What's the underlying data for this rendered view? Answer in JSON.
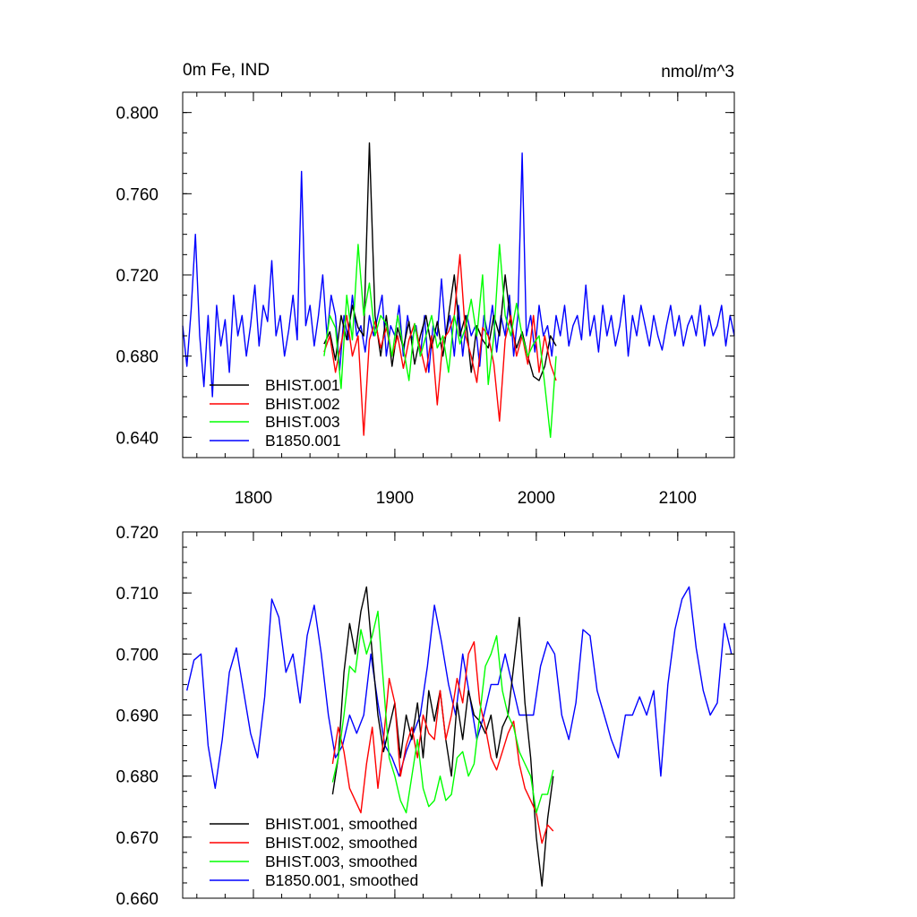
{
  "chart_data": [
    {
      "type": "line",
      "title_left": "0m Fe, IND",
      "title_right": "nmol/m^3",
      "xlim": [
        1750,
        2140
      ],
      "ylim": [
        0.63,
        0.81
      ],
      "yticks": [
        {
          "v": 0.8,
          "label": "0.800"
        },
        {
          "v": 0.76,
          "label": "0.760"
        },
        {
          "v": 0.72,
          "label": "0.720"
        },
        {
          "v": 0.68,
          "label": "0.680"
        },
        {
          "v": 0.64,
          "label": "0.640"
        }
      ],
      "xticks": [
        {
          "v": 1800,
          "label": "1800"
        },
        {
          "v": 1900,
          "label": "1900"
        },
        {
          "v": 2000,
          "label": "2000"
        },
        {
          "v": 2100,
          "label": "2100"
        }
      ],
      "legend": [
        "BHIST.001",
        "BHIST.002",
        "BHIST.003",
        "B1850.001"
      ],
      "series": [
        {
          "name": "B1850.001",
          "color": "#0000ff",
          "x": [
            1750,
            1753,
            1756,
            1759,
            1762,
            1765,
            1768,
            1771,
            1774,
            1777,
            1780,
            1783,
            1786,
            1789,
            1792,
            1795,
            1798,
            1801,
            1804,
            1807,
            1810,
            1813,
            1816,
            1819,
            1822,
            1825,
            1828,
            1831,
            1834,
            1837,
            1840,
            1843,
            1846,
            1849,
            1852,
            1855,
            1858,
            1861,
            1864,
            1867,
            1870,
            1873,
            1876,
            1879,
            1882,
            1885,
            1888,
            1891,
            1894,
            1897,
            1900,
            1903,
            1906,
            1909,
            1912,
            1915,
            1918,
            1921,
            1924,
            1927,
            1930,
            1933,
            1936,
            1939,
            1942,
            1945,
            1948,
            1951,
            1954,
            1957,
            1960,
            1963,
            1966,
            1969,
            1972,
            1975,
            1978,
            1981,
            1984,
            1987,
            1990,
            1993,
            1996,
            1999,
            2002,
            2005,
            2008,
            2011,
            2014,
            2017,
            2020,
            2023,
            2026,
            2029,
            2032,
            2035,
            2038,
            2041,
            2044,
            2047,
            2050,
            2053,
            2056,
            2059,
            2062,
            2065,
            2068,
            2071,
            2074,
            2077,
            2080,
            2083,
            2086,
            2089,
            2092,
            2095,
            2098,
            2101,
            2104,
            2107,
            2110,
            2113,
            2116,
            2119,
            2122,
            2125,
            2128,
            2131,
            2134,
            2137,
            2140
          ],
          "y": [
            0.695,
            0.675,
            0.703,
            0.74,
            0.69,
            0.665,
            0.7,
            0.66,
            0.705,
            0.685,
            0.698,
            0.672,
            0.71,
            0.69,
            0.7,
            0.68,
            0.695,
            0.715,
            0.685,
            0.705,
            0.697,
            0.727,
            0.69,
            0.7,
            0.68,
            0.693,
            0.71,
            0.688,
            0.771,
            0.695,
            0.705,
            0.685,
            0.7,
            0.72,
            0.69,
            0.71,
            0.7,
            0.673,
            0.7,
            0.688,
            0.71,
            0.69,
            0.695,
            0.682,
            0.7,
            0.69,
            0.7,
            0.71,
            0.68,
            0.695,
            0.69,
            0.705,
            0.68,
            0.7,
            0.688,
            0.695,
            0.68,
            0.7,
            0.672,
            0.695,
            0.69,
            0.718,
            0.69,
            0.7,
            0.68,
            0.705,
            0.68,
            0.7,
            0.69,
            0.695,
            0.675,
            0.7,
            0.69,
            0.705,
            0.682,
            0.7,
            0.69,
            0.71,
            0.68,
            0.7,
            0.78,
            0.69,
            0.7,
            0.682,
            0.705,
            0.69,
            0.695,
            0.68,
            0.7,
            0.69,
            0.705,
            0.685,
            0.695,
            0.7,
            0.688,
            0.715,
            0.69,
            0.7,
            0.682,
            0.705,
            0.69,
            0.7,
            0.685,
            0.695,
            0.71,
            0.68,
            0.7,
            0.69,
            0.705,
            0.695,
            0.685,
            0.7,
            0.69,
            0.683,
            0.695,
            0.705,
            0.69,
            0.7,
            0.685,
            0.695,
            0.7,
            0.69,
            0.705,
            0.685,
            0.7,
            0.69,
            0.695,
            0.705,
            0.685,
            0.7,
            0.69
          ]
        },
        {
          "name": "BHIST.001",
          "color": "#000000",
          "x": [
            1850,
            1854,
            1858,
            1862,
            1866,
            1870,
            1874,
            1878,
            1882,
            1886,
            1890,
            1894,
            1898,
            1902,
            1906,
            1910,
            1914,
            1918,
            1922,
            1926,
            1930,
            1934,
            1938,
            1942,
            1946,
            1950,
            1954,
            1958,
            1962,
            1966,
            1970,
            1974,
            1978,
            1982,
            1986,
            1990,
            1994,
            1998,
            2002,
            2006,
            2010,
            2014
          ],
          "y": [
            0.686,
            0.692,
            0.678,
            0.7,
            0.688,
            0.705,
            0.694,
            0.69,
            0.785,
            0.7,
            0.68,
            0.7,
            0.675,
            0.694,
            0.684,
            0.697,
            0.676,
            0.69,
            0.7,
            0.684,
            0.697,
            0.68,
            0.7,
            0.72,
            0.69,
            0.7,
            0.672,
            0.695,
            0.688,
            0.684,
            0.7,
            0.69,
            0.72,
            0.696,
            0.684,
            0.692,
            0.68,
            0.67,
            0.668,
            0.675,
            0.69,
            0.685
          ]
        },
        {
          "name": "BHIST.002",
          "color": "#ff0000",
          "x": [
            1850,
            1854,
            1858,
            1862,
            1866,
            1870,
            1874,
            1878,
            1882,
            1886,
            1890,
            1894,
            1898,
            1902,
            1906,
            1910,
            1914,
            1918,
            1922,
            1926,
            1930,
            1934,
            1938,
            1942,
            1946,
            1950,
            1954,
            1958,
            1962,
            1966,
            1970,
            1974,
            1978,
            1982,
            1986,
            1990,
            1994,
            1998,
            2002,
            2006,
            2010,
            2014
          ],
          "y": [
            0.682,
            0.69,
            0.672,
            0.686,
            0.7,
            0.68,
            0.69,
            0.641,
            0.688,
            0.697,
            0.684,
            0.694,
            0.68,
            0.69,
            0.674,
            0.688,
            0.696,
            0.684,
            0.672,
            0.69,
            0.656,
            0.688,
            0.692,
            0.7,
            0.73,
            0.69,
            0.68,
            0.667,
            0.694,
            0.69,
            0.676,
            0.648,
            0.688,
            0.7,
            0.68,
            0.69,
            0.676,
            0.7,
            0.672,
            0.69,
            0.676,
            0.668
          ]
        },
        {
          "name": "BHIST.003",
          "color": "#00ff00",
          "x": [
            1850,
            1854,
            1858,
            1862,
            1866,
            1870,
            1874,
            1878,
            1882,
            1886,
            1890,
            1894,
            1898,
            1902,
            1906,
            1910,
            1914,
            1918,
            1922,
            1926,
            1930,
            1934,
            1938,
            1942,
            1946,
            1950,
            1954,
            1958,
            1962,
            1966,
            1970,
            1974,
            1978,
            1982,
            1986,
            1990,
            1994,
            1998,
            2002,
            2006,
            2010,
            2014
          ],
          "y": [
            0.68,
            0.7,
            0.694,
            0.664,
            0.71,
            0.688,
            0.735,
            0.7,
            0.716,
            0.69,
            0.7,
            0.696,
            0.68,
            0.7,
            0.684,
            0.668,
            0.696,
            0.68,
            0.69,
            0.7,
            0.684,
            0.69,
            0.672,
            0.7,
            0.686,
            0.694,
            0.708,
            0.69,
            0.72,
            0.666,
            0.69,
            0.735,
            0.7,
            0.69,
            0.706,
            0.69,
            0.68,
            0.686,
            0.69,
            0.666,
            0.64,
            0.68
          ]
        }
      ]
    },
    {
      "type": "line",
      "xlim": [
        1750,
        2140
      ],
      "ylim": [
        0.66,
        0.72
      ],
      "yticks": [
        {
          "v": 0.72,
          "label": "0.720"
        },
        {
          "v": 0.71,
          "label": "0.710"
        },
        {
          "v": 0.7,
          "label": "0.700"
        },
        {
          "v": 0.69,
          "label": "0.690"
        },
        {
          "v": 0.68,
          "label": "0.680"
        },
        {
          "v": 0.67,
          "label": "0.670"
        },
        {
          "v": 0.66,
          "label": "0.660"
        }
      ],
      "xticks": [
        {
          "v": 1800,
          "label": ""
        },
        {
          "v": 1900,
          "label": ""
        },
        {
          "v": 2000,
          "label": ""
        },
        {
          "v": 2100,
          "label": ""
        }
      ],
      "legend": [
        "BHIST.001, smoothed",
        "BHIST.002, smoothed",
        "BHIST.003, smoothed",
        "B1850.001, smoothed"
      ],
      "series": [
        {
          "name": "B1850.001, smoothed",
          "color": "#0000ff",
          "x": [
            1753,
            1758,
            1763,
            1768,
            1773,
            1778,
            1783,
            1788,
            1793,
            1798,
            1803,
            1808,
            1813,
            1818,
            1823,
            1828,
            1833,
            1838,
            1843,
            1848,
            1853,
            1858,
            1863,
            1868,
            1873,
            1878,
            1883,
            1888,
            1893,
            1898,
            1903,
            1908,
            1913,
            1918,
            1923,
            1928,
            1933,
            1938,
            1943,
            1948,
            1953,
            1958,
            1963,
            1968,
            1973,
            1978,
            1983,
            1988,
            1993,
            1998,
            2003,
            2008,
            2013,
            2018,
            2023,
            2028,
            2033,
            2038,
            2043,
            2048,
            2053,
            2058,
            2063,
            2068,
            2073,
            2078,
            2083,
            2088,
            2093,
            2098,
            2103,
            2108,
            2113,
            2118,
            2123,
            2128,
            2133,
            2138
          ],
          "y": [
            0.694,
            0.699,
            0.7,
            0.685,
            0.678,
            0.686,
            0.697,
            0.701,
            0.694,
            0.687,
            0.683,
            0.693,
            0.709,
            0.706,
            0.697,
            0.7,
            0.692,
            0.703,
            0.708,
            0.7,
            0.69,
            0.683,
            0.685,
            0.69,
            0.687,
            0.69,
            0.7,
            0.692,
            0.685,
            0.683,
            0.68,
            0.684,
            0.687,
            0.69,
            0.698,
            0.708,
            0.702,
            0.695,
            0.69,
            0.7,
            0.693,
            0.686,
            0.69,
            0.695,
            0.695,
            0.7,
            0.695,
            0.69,
            0.69,
            0.69,
            0.698,
            0.702,
            0.7,
            0.69,
            0.686,
            0.692,
            0.704,
            0.703,
            0.694,
            0.69,
            0.686,
            0.683,
            0.69,
            0.69,
            0.693,
            0.69,
            0.694,
            0.68,
            0.695,
            0.704,
            0.709,
            0.711,
            0.701,
            0.694,
            0.69,
            0.692,
            0.705,
            0.7
          ]
        },
        {
          "name": "BHIST.001, smoothed",
          "color": "#000000",
          "x": [
            1856,
            1860,
            1864,
            1868,
            1872,
            1876,
            1880,
            1884,
            1888,
            1892,
            1896,
            1900,
            1904,
            1908,
            1912,
            1916,
            1920,
            1924,
            1928,
            1932,
            1936,
            1940,
            1944,
            1948,
            1952,
            1956,
            1960,
            1964,
            1968,
            1972,
            1976,
            1980,
            1984,
            1988,
            1992,
            1996,
            2000,
            2004,
            2008,
            2012
          ],
          "y": [
            0.677,
            0.683,
            0.697,
            0.705,
            0.7,
            0.707,
            0.711,
            0.7,
            0.69,
            0.684,
            0.688,
            0.692,
            0.683,
            0.69,
            0.686,
            0.692,
            0.683,
            0.694,
            0.689,
            0.694,
            0.686,
            0.68,
            0.692,
            0.686,
            0.694,
            0.69,
            0.689,
            0.687,
            0.69,
            0.683,
            0.688,
            0.69,
            0.698,
            0.706,
            0.692,
            0.683,
            0.67,
            0.662,
            0.673,
            0.68
          ]
        },
        {
          "name": "BHIST.002, smoothed",
          "color": "#ff0000",
          "x": [
            1856,
            1860,
            1864,
            1868,
            1872,
            1876,
            1880,
            1884,
            1888,
            1892,
            1896,
            1900,
            1904,
            1908,
            1912,
            1916,
            1920,
            1924,
            1928,
            1932,
            1936,
            1940,
            1944,
            1948,
            1952,
            1956,
            1960,
            1964,
            1968,
            1972,
            1976,
            1980,
            1984,
            1988,
            1992,
            1996,
            2000,
            2004,
            2008,
            2012
          ],
          "y": [
            0.682,
            0.688,
            0.684,
            0.678,
            0.676,
            0.674,
            0.682,
            0.688,
            0.678,
            0.686,
            0.696,
            0.692,
            0.68,
            0.685,
            0.688,
            0.683,
            0.69,
            0.687,
            0.686,
            0.694,
            0.686,
            0.69,
            0.696,
            0.692,
            0.7,
            0.702,
            0.692,
            0.688,
            0.683,
            0.681,
            0.684,
            0.687,
            0.689,
            0.682,
            0.678,
            0.676,
            0.674,
            0.669,
            0.672,
            0.671
          ]
        },
        {
          "name": "BHIST.003, smoothed",
          "color": "#00ff00",
          "x": [
            1856,
            1860,
            1864,
            1868,
            1872,
            1876,
            1880,
            1884,
            1888,
            1892,
            1896,
            1900,
            1904,
            1908,
            1912,
            1916,
            1920,
            1924,
            1928,
            1932,
            1936,
            1940,
            1944,
            1948,
            1952,
            1956,
            1960,
            1964,
            1968,
            1972,
            1976,
            1980,
            1984,
            1988,
            1992,
            1996,
            2000,
            2004,
            2008,
            2012
          ],
          "y": [
            0.679,
            0.683,
            0.69,
            0.698,
            0.697,
            0.704,
            0.7,
            0.703,
            0.707,
            0.695,
            0.683,
            0.68,
            0.676,
            0.674,
            0.68,
            0.686,
            0.678,
            0.675,
            0.676,
            0.68,
            0.676,
            0.677,
            0.683,
            0.684,
            0.68,
            0.682,
            0.69,
            0.698,
            0.7,
            0.703,
            0.694,
            0.69,
            0.688,
            0.684,
            0.682,
            0.68,
            0.674,
            0.677,
            0.677,
            0.681
          ]
        }
      ]
    }
  ]
}
